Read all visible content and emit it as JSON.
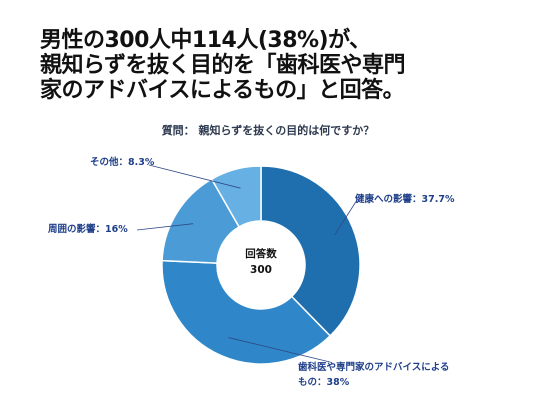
{
  "headline": {
    "line1": "男性の300人中114人(38%)が、",
    "line2": "親知らずを抜く目的を「歯科医や専門",
    "line3": "家のアドバイスによるもの」と回答。"
  },
  "chart_data": {
    "type": "pie",
    "donut": true,
    "question": "質問： 親知らずを抜くの目的は何ですか？",
    "center_label": "回答数",
    "center_value": "300",
    "slices": [
      {
        "label": "健康への影響",
        "value": 37.7,
        "text": "健康への影響：37.7%",
        "color": "#1f6fae"
      },
      {
        "label": "歯科医や専門家のアドバイスによるもの",
        "value": 38,
        "text_line1": "歯科医や専門家のアドバイスによる",
        "text_line2": "もの：38%",
        "color": "#2f87c9"
      },
      {
        "label": "周囲の影響",
        "value": 16,
        "text": "周囲の影響：16%",
        "color": "#4a9bd6"
      },
      {
        "label": "その他",
        "value": 8.3,
        "text": "その他：8.3%",
        "color": "#67b0e3"
      }
    ],
    "start_angle_deg": 0,
    "legend": "callouts"
  },
  "colors": {
    "callout_text": "#1f3f8a",
    "leader_line": "#2f4a86",
    "separator": "#ffffff"
  }
}
